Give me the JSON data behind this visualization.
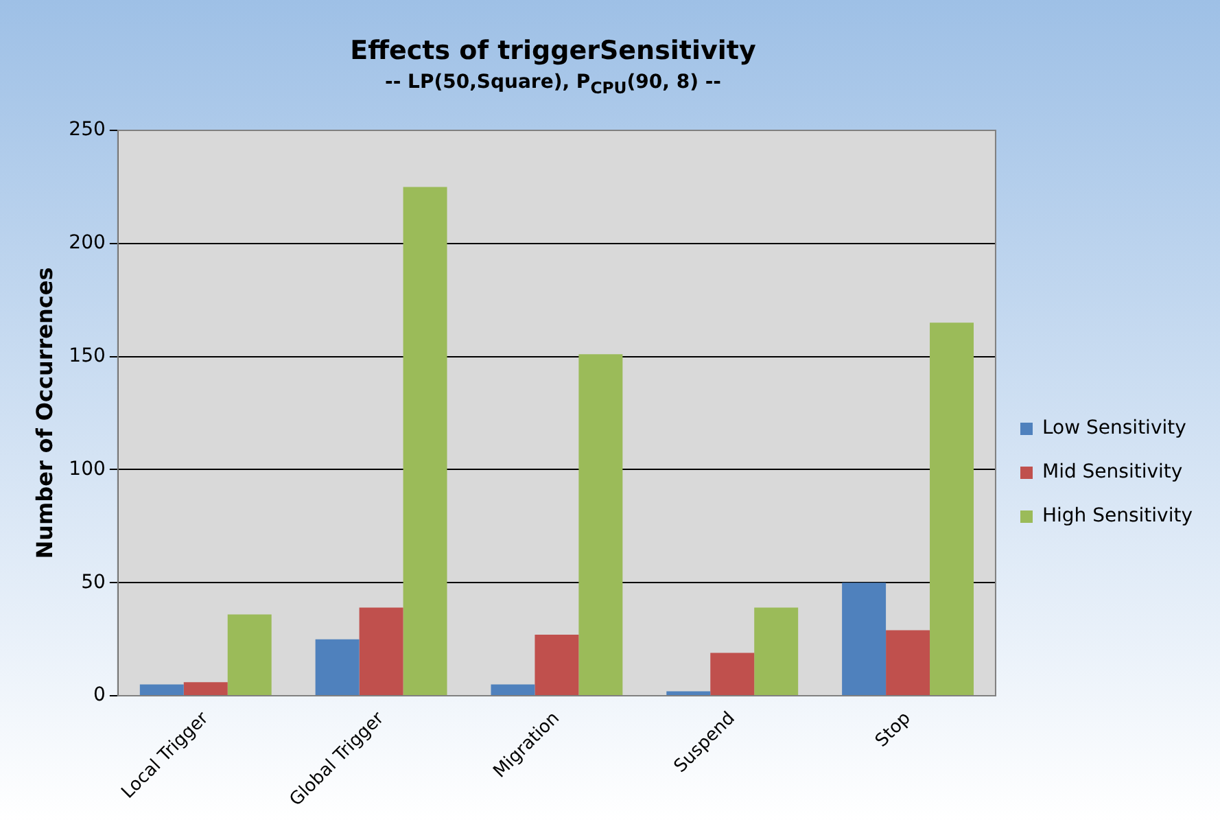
{
  "chart_data": {
    "type": "bar",
    "title": "Effects of triggerSensitivity",
    "subtitle": "-- LP(50,Square), P$_{CPU}$(90, 8) --",
    "ylabel": "Number of Occurrences",
    "categories": [
      "Local Trigger",
      "Global Trigger",
      "Migration",
      "Suspend",
      "Stop"
    ],
    "series": [
      {
        "name": "Low Sensitivity",
        "color": "#4f81bd",
        "values": [
          5,
          25,
          5,
          2,
          50
        ]
      },
      {
        "name": "Mid Sensitivity",
        "color": "#c0504d",
        "values": [
          6,
          39,
          27,
          19,
          29
        ]
      },
      {
        "name": "High Sensitivity",
        "color": "#9bbb59",
        "values": [
          36,
          225,
          151,
          39,
          165
        ]
      }
    ],
    "ylim": [
      0,
      250
    ],
    "yticks": [
      0,
      50,
      100,
      150,
      200,
      250
    ],
    "grid": "y",
    "legend": "right"
  }
}
